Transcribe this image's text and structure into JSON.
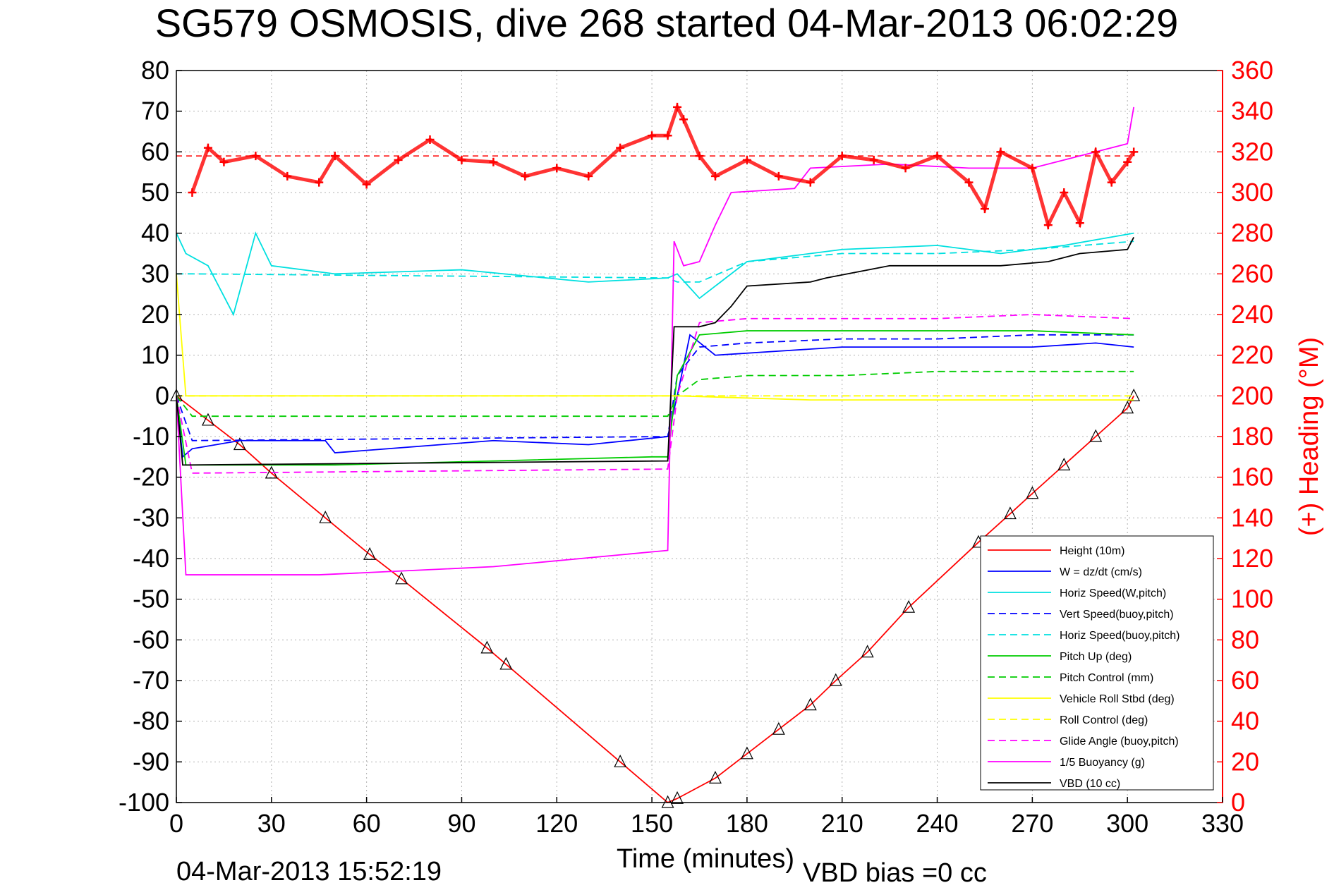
{
  "chart_data": {
    "type": "line",
    "title": "SG579 OSMOSIS, dive 268 started 04-Mar-2013 06:02:29",
    "xlabel": "Time (minutes)",
    "ylabel": "",
    "ylabel_right": "(+) Heading (°M)",
    "xlim": [
      0,
      330
    ],
    "ylim": [
      -100,
      80
    ],
    "ylim_right": [
      0,
      360
    ],
    "x_ticks": [
      "0",
      "30",
      "60",
      "90",
      "120",
      "150",
      "180",
      "210",
      "240",
      "270",
      "300",
      "330"
    ],
    "y_ticks": [
      "80",
      "70",
      "60",
      "50",
      "40",
      "30",
      "20",
      "10",
      "0",
      "-10",
      "-20",
      "-30",
      "-40",
      "-50",
      "-60",
      "-70",
      "-80",
      "-90",
      "-100"
    ],
    "y_ticks_right": [
      "360",
      "340",
      "320",
      "300",
      "280",
      "260",
      "240",
      "220",
      "200",
      "180",
      "160",
      "140",
      "120",
      "100",
      "80",
      "60",
      "40",
      "20",
      "0"
    ],
    "grid": true,
    "legend_position": "bottom-right",
    "footer_left": "04-Mar-2013 15:52:19",
    "footer_right": "VBD bias =0 cc",
    "series": [
      {
        "name": "Height (10m)",
        "color": "#ff0000",
        "style": "solid",
        "x": [
          0,
          10,
          20,
          30,
          47,
          61,
          71,
          98,
          104,
          140,
          155,
          158,
          170,
          180,
          190,
          200,
          208,
          218,
          231,
          253,
          263,
          270,
          280,
          290,
          300,
          302
        ],
        "y": [
          0,
          -6,
          -12,
          -19,
          -30,
          -39,
          -45,
          -62,
          -66,
          -90,
          -100,
          -99,
          -94,
          -88,
          -82,
          -76,
          -70,
          -63,
          -52,
          -36,
          -29,
          -24,
          -17,
          -10,
          -3,
          0
        ]
      },
      {
        "name": "W = dz/dt (cm/s)",
        "color": "#0000ff",
        "style": "solid",
        "x": [
          0,
          2,
          5,
          20,
          47,
          50,
          100,
          130,
          155,
          158,
          162,
          170,
          190,
          210,
          230,
          250,
          270,
          290,
          302
        ],
        "y": [
          0,
          -15,
          -13,
          -11,
          -11,
          -14,
          -11,
          -12,
          -10,
          0,
          15,
          10,
          11,
          12,
          12,
          12,
          12,
          13,
          12
        ]
      },
      {
        "name": "Horiz Speed(W,pitch)",
        "color": "#00e0e0",
        "style": "solid",
        "x": [
          0,
          3,
          10,
          18,
          25,
          30,
          50,
          90,
          130,
          155,
          158,
          165,
          180,
          210,
          240,
          260,
          280,
          302
        ],
        "y": [
          40,
          35,
          32,
          20,
          40,
          32,
          30,
          31,
          28,
          29,
          30,
          24,
          33,
          36,
          37,
          35,
          37,
          40
        ]
      },
      {
        "name": "Vert Speed(buoy,pitch)",
        "color": "#0000ff",
        "style": "dashed",
        "x": [
          0,
          5,
          155,
          158,
          165,
          180,
          210,
          240,
          270,
          302
        ],
        "y": [
          0,
          -11,
          -10,
          5,
          12,
          13,
          14,
          14,
          15,
          15
        ]
      },
      {
        "name": "Horiz Speed(buoy,pitch)",
        "color": "#00e0e0",
        "style": "dashed",
        "x": [
          0,
          5,
          155,
          158,
          165,
          180,
          210,
          240,
          270,
          302
        ],
        "y": [
          30,
          30,
          29,
          28,
          28,
          33,
          35,
          35,
          36,
          38
        ]
      },
      {
        "name": "Pitch Up (deg)",
        "color": "#00cc00",
        "style": "solid",
        "x": [
          0,
          3,
          50,
          100,
          150,
          155,
          158,
          165,
          180,
          210,
          240,
          270,
          302
        ],
        "y": [
          0,
          -17,
          -17,
          -16,
          -15,
          -15,
          5,
          15,
          16,
          16,
          16,
          16,
          15
        ]
      },
      {
        "name": "Pitch Control (mm)",
        "color": "#00cc00",
        "style": "dashed",
        "x": [
          0,
          5,
          155,
          158,
          165,
          180,
          210,
          240,
          270,
          302
        ],
        "y": [
          0,
          -5,
          -5,
          0,
          4,
          5,
          5,
          6,
          6,
          6
        ]
      },
      {
        "name": "Vehicle Roll Stbd (deg)",
        "color": "#ffff00",
        "style": "solid",
        "x": [
          0,
          3,
          50,
          100,
          155,
          158,
          200,
          250,
          302
        ],
        "y": [
          30,
          0,
          0,
          0,
          0,
          0,
          -1,
          -1,
          -1
        ]
      },
      {
        "name": "Roll Control (deg)",
        "color": "#ffff00",
        "style": "dashed",
        "x": [
          0,
          302
        ],
        "y": [
          0,
          0
        ]
      },
      {
        "name": "Glide Angle (buoy,pitch)",
        "color": "#ff00ff",
        "style": "dashed",
        "x": [
          0,
          5,
          155,
          158,
          165,
          180,
          210,
          240,
          270,
          302
        ],
        "y": [
          0,
          -19,
          -18,
          0,
          18,
          19,
          19,
          19,
          20,
          19
        ]
      },
      {
        "name": "1/5 Buoyancy (g)",
        "color": "#ff00ff",
        "style": "solid",
        "x": [
          0,
          3,
          45,
          100,
          155,
          157,
          160,
          165,
          170,
          175,
          195,
          200,
          225,
          250,
          270,
          300,
          302
        ],
        "y": [
          0,
          -44,
          -44,
          -42,
          -38,
          38,
          32,
          33,
          42,
          50,
          51,
          56,
          57,
          56,
          56,
          62,
          71
        ]
      },
      {
        "name": "VBD (10 cc)",
        "color": "#000000",
        "style": "solid",
        "x": [
          0,
          2,
          155,
          157,
          165,
          170,
          175,
          180,
          200,
          205,
          225,
          260,
          275,
          285,
          300,
          302
        ],
        "y": [
          0,
          -17,
          -16,
          17,
          17,
          18,
          22,
          27,
          28,
          29,
          32,
          32,
          33,
          35,
          36,
          39
        ]
      },
      {
        "name": "Heading",
        "color": "#ff0000",
        "style": "markers",
        "axis": "right",
        "x": [
          5,
          10,
          15,
          25,
          35,
          45,
          50,
          60,
          70,
          80,
          90,
          100,
          110,
          120,
          130,
          140,
          150,
          155,
          158,
          160,
          165,
          170,
          180,
          190,
          200,
          210,
          220,
          230,
          240,
          250,
          255,
          260,
          270,
          275,
          280,
          285,
          290,
          295,
          300,
          302
        ],
        "y": [
          300,
          322,
          315,
          318,
          308,
          305,
          318,
          304,
          316,
          326,
          316,
          315,
          308,
          312,
          308,
          322,
          328,
          328,
          342,
          336,
          318,
          308,
          316,
          308,
          305,
          318,
          316,
          312,
          318,
          305,
          292,
          320,
          312,
          284,
          300,
          285,
          320,
          305,
          315,
          320
        ]
      }
    ],
    "heading_mean": 318
  }
}
